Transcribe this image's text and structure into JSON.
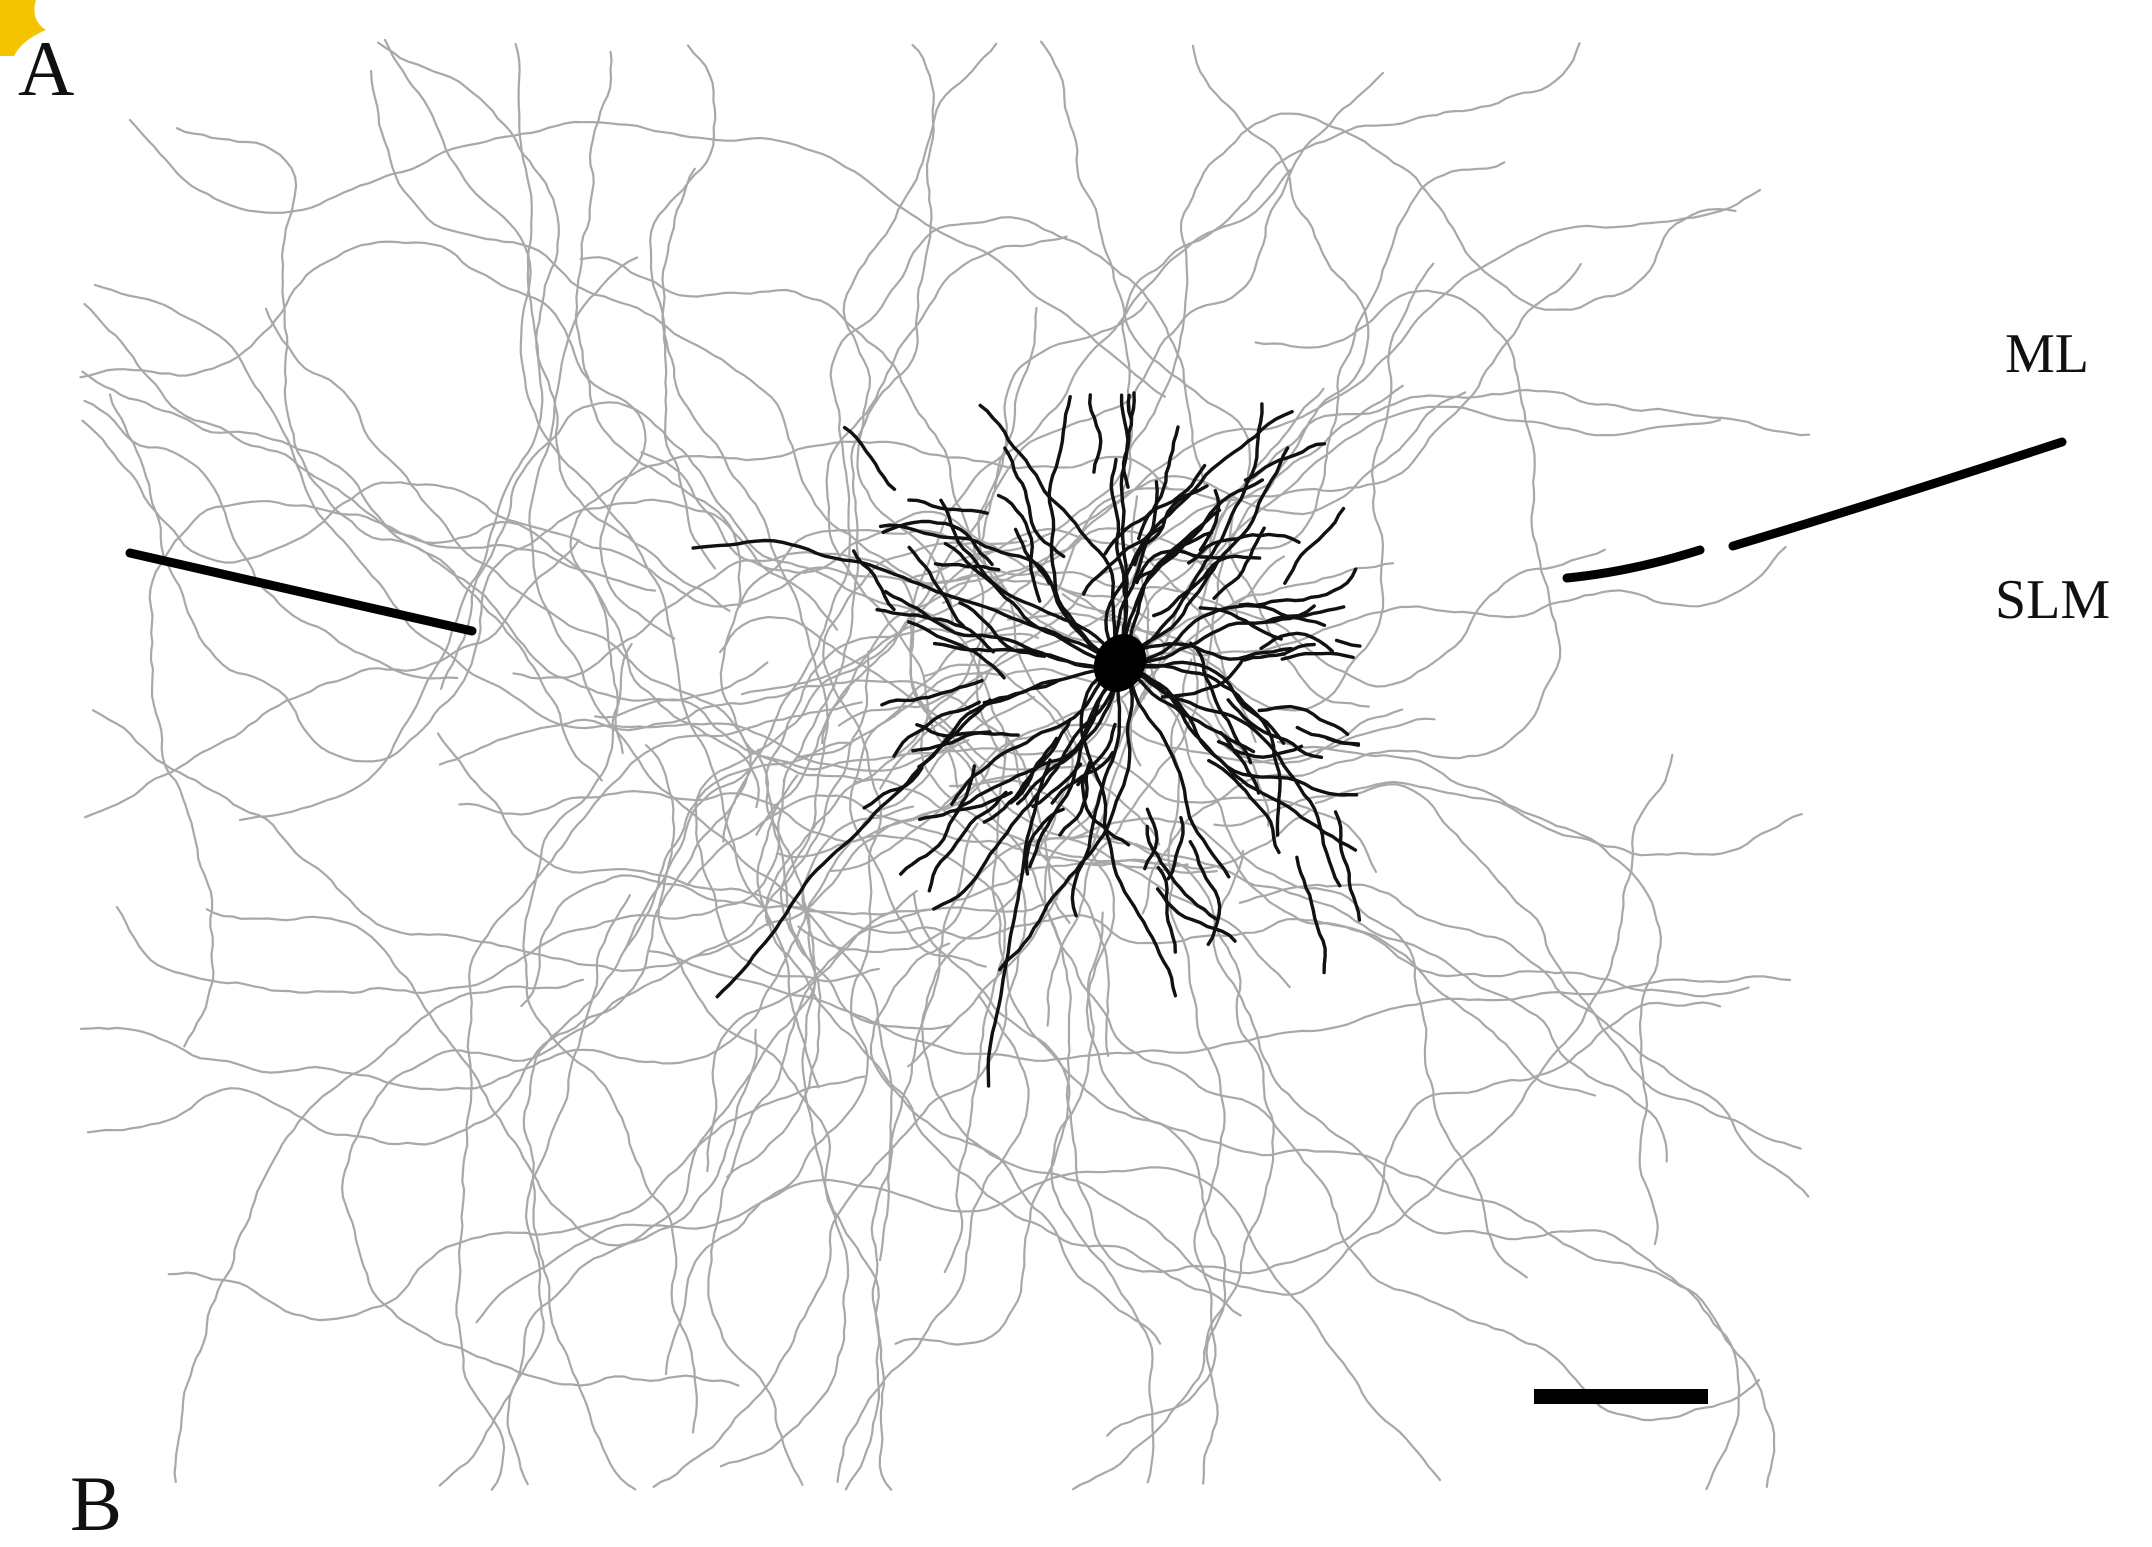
{
  "panel_label_a": "A",
  "panel_label_b": "B",
  "layer_labels": {
    "upper": "ML",
    "lower": "SLM"
  },
  "colors": {
    "axon": "#a8a8a8",
    "dendrite": "#111111",
    "soma": "#000000",
    "boundary": "#000000",
    "scale_bar": "#000000",
    "corner_mark": "#f5c400",
    "background": "#ffffff"
  }
}
